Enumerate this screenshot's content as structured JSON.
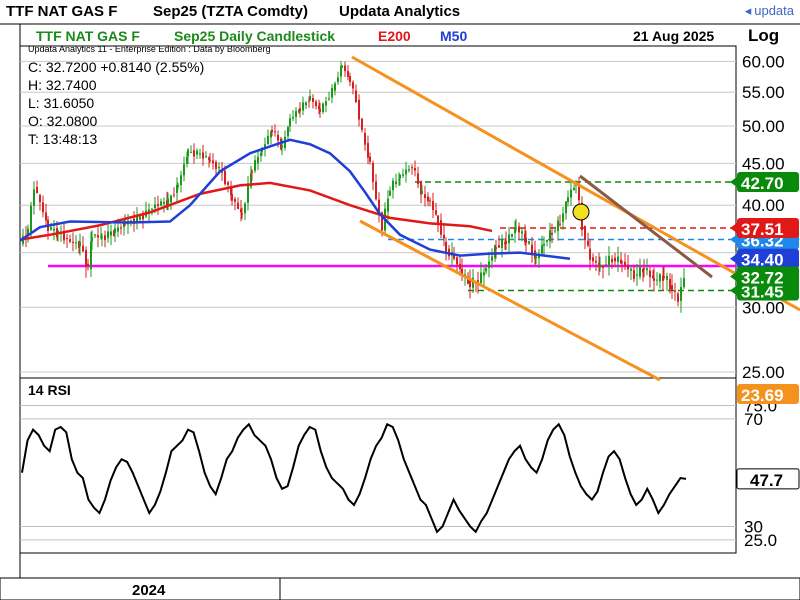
{
  "header": {
    "instrument": "TTF NAT GAS F",
    "contract": "Sep25 (TZTA Comdty)",
    "publisher": "Updata Analytics",
    "logo": "updata",
    "logo_icon": "updata-logo-icon"
  },
  "subheader": {
    "title": "TTF NAT GAS F",
    "chart_type": "Sep25 Daily Candlestick",
    "e200": "E200",
    "m50": "M50",
    "date": "21 Aug 2025",
    "scale": "Log",
    "edition_note": "Updata Analytics 11 - Enterprise Edition : Data by Bloomberg"
  },
  "ohlc": {
    "change": "C: 32.7200  +0.8140 (2.55%)",
    "high": "H: 32.7400",
    "low": "L: 31.6050",
    "open": "O: 32.0800",
    "time": "T: 13:48:13"
  },
  "colors": {
    "candle_up": "#1a9a1a",
    "candle_down": "#d42020",
    "e200": "#e01818",
    "m50": "#1f3fd6",
    "channel": "#f5921e",
    "trend": "#8a5a44",
    "support": "#ff00ff",
    "dash_green": "#0a8a0a",
    "dash_red": "#e01818",
    "dash_blue": "#1f88e8",
    "rsi_tag": "#f5921e"
  },
  "chart_data": [
    {
      "type": "candlestick",
      "title": "TTF NAT GAS F",
      "scale": "log",
      "ylim": [
        25,
        63
      ],
      "y_ticks": [
        "60.00",
        "55.00",
        "50.00",
        "45.00",
        "40.00",
        "35.00",
        "30.00",
        "25.00"
      ],
      "x_label": "2024",
      "series": [
        {
          "name": "E200",
          "points": [
            [
              0,
              36.3
            ],
            [
              30,
              36.8
            ],
            [
              80,
              37.8
            ],
            [
              130,
              39.2
            ],
            [
              180,
              41.3
            ],
            [
              220,
              42.3
            ],
            [
              250,
              42.6
            ],
            [
              290,
              41.7
            ],
            [
              330,
              40.0
            ],
            [
              370,
              38.6
            ],
            [
              410,
              38.0
            ],
            [
              450,
              37.7
            ],
            [
              472,
              37.2
            ]
          ]
        },
        {
          "name": "M50",
          "points": [
            [
              0,
              36.2
            ],
            [
              20,
              37.6
            ],
            [
              50,
              38.2
            ],
            [
              110,
              38.1
            ],
            [
              150,
              38.2
            ],
            [
              170,
              40.0
            ],
            [
              200,
              44.0
            ],
            [
              230,
              46.3
            ],
            [
              250,
              47.2
            ],
            [
              270,
              48.1
            ],
            [
              290,
              47.5
            ],
            [
              310,
              46.3
            ],
            [
              330,
              44.0
            ],
            [
              345,
              41.5
            ],
            [
              360,
              39.0
            ],
            [
              380,
              36.8
            ],
            [
              410,
              35.3
            ],
            [
              440,
              34.7
            ],
            [
              470,
              34.9
            ],
            [
              500,
              35.0
            ],
            [
              550,
              34.4
            ]
          ]
        }
      ],
      "ohlc_path": [
        [
          0,
          36.0
        ],
        [
          8,
          37.2
        ],
        [
          14,
          42.2
        ],
        [
          20,
          40.3
        ],
        [
          28,
          37.5
        ],
        [
          38,
          37.0
        ],
        [
          50,
          36.1
        ],
        [
          60,
          35.8
        ],
        [
          68,
          33.5
        ],
        [
          72,
          36.8
        ],
        [
          82,
          36.5
        ],
        [
          95,
          37.2
        ],
        [
          105,
          38.0
        ],
        [
          120,
          38.6
        ],
        [
          135,
          40.0
        ],
        [
          148,
          40.4
        ],
        [
          158,
          42.3
        ],
        [
          168,
          46.5
        ],
        [
          180,
          46.2
        ],
        [
          190,
          45.4
        ],
        [
          202,
          43.8
        ],
        [
          212,
          40.8
        ],
        [
          222,
          38.9
        ],
        [
          232,
          44.3
        ],
        [
          242,
          46.8
        ],
        [
          252,
          49.5
        ],
        [
          262,
          47.0
        ],
        [
          270,
          51.0
        ],
        [
          280,
          52.5
        ],
        [
          290,
          54.1
        ],
        [
          300,
          52.2
        ],
        [
          312,
          55.2
        ],
        [
          322,
          59.3
        ],
        [
          330,
          56.8
        ],
        [
          336,
          53.6
        ],
        [
          342,
          49.0
        ],
        [
          350,
          45.0
        ],
        [
          356,
          40.6
        ],
        [
          362,
          37.5
        ],
        [
          370,
          42.0
        ],
        [
          380,
          43.4
        ],
        [
          392,
          44.7
        ],
        [
          402,
          41.2
        ],
        [
          410,
          40.4
        ],
        [
          418,
          38.2
        ],
        [
          426,
          35.2
        ],
        [
          434,
          34.5
        ],
        [
          442,
          33.0
        ],
        [
          450,
          32.0
        ],
        [
          458,
          32.3
        ],
        [
          466,
          33.5
        ],
        [
          476,
          35.6
        ],
        [
          486,
          36.1
        ],
        [
          496,
          37.6
        ],
        [
          506,
          36.2
        ],
        [
          516,
          34.4
        ],
        [
          524,
          36.0
        ],
        [
          532,
          37.1
        ],
        [
          540,
          38.1
        ],
        [
          548,
          41.0
        ],
        [
          556,
          42.6
        ],
        [
          562,
          37.6
        ],
        [
          570,
          34.5
        ],
        [
          580,
          33.6
        ],
        [
          592,
          34.4
        ],
        [
          602,
          34.1
        ],
        [
          614,
          32.8
        ],
        [
          624,
          33.5
        ],
        [
          634,
          32.4
        ],
        [
          644,
          32.7
        ],
        [
          652,
          31.6
        ],
        [
          658,
          30.6
        ],
        [
          664,
          32.72
        ]
      ],
      "levels": [
        {
          "value": "42.70",
          "color": "#0a8a0a",
          "style": "dashed"
        },
        {
          "value": "37.51",
          "color": "#e01818",
          "style": "dashed"
        },
        {
          "value": "36.32",
          "color": "#1f88e8",
          "style": "dashed"
        },
        {
          "value": "34.40",
          "color": "#1f3fd6",
          "style": "tag"
        },
        {
          "value": "32.72",
          "color": "#0a8a0a",
          "style": "tag"
        },
        {
          "value": "31.45",
          "color": "#0a8a0a",
          "style": "dashed"
        },
        {
          "value": "33.70",
          "color": "#ff00ff",
          "style": "support"
        }
      ],
      "annotations": [
        "channel-upper",
        "channel-lower",
        "downtrend-line",
        "marker-circle"
      ]
    },
    {
      "type": "line",
      "title": "14 RSI",
      "ylim": [
        22,
        80
      ],
      "y_ticks": [
        "75.0",
        "70",
        "30",
        "25.0"
      ],
      "last_value": "47.7",
      "tag_value": "23.69",
      "values": [
        50,
        62,
        66,
        64,
        60,
        58,
        66,
        67,
        65,
        55,
        50,
        48,
        40,
        37,
        35,
        40,
        47,
        52,
        55,
        54,
        50,
        45,
        40,
        35,
        38,
        43,
        50,
        58,
        60,
        62,
        66,
        65,
        58,
        50,
        45,
        42,
        48,
        55,
        58,
        63,
        66,
        68,
        64,
        62,
        60,
        55,
        48,
        44,
        45,
        52,
        60,
        64,
        67,
        66,
        58,
        52,
        48,
        46,
        44,
        40,
        38,
        42,
        48,
        55,
        60,
        63,
        68,
        67,
        62,
        55,
        50,
        45,
        40,
        38,
        33,
        28,
        30,
        35,
        40,
        36,
        33,
        30,
        28,
        32,
        35,
        40,
        45,
        50,
        55,
        58,
        60,
        55,
        52,
        50,
        55,
        62,
        66,
        68,
        64,
        56,
        50,
        45,
        42,
        40,
        43,
        50,
        56,
        58,
        55,
        48,
        42,
        38,
        40,
        44,
        40,
        35,
        38,
        42,
        45,
        48,
        47.7
      ]
    }
  ]
}
